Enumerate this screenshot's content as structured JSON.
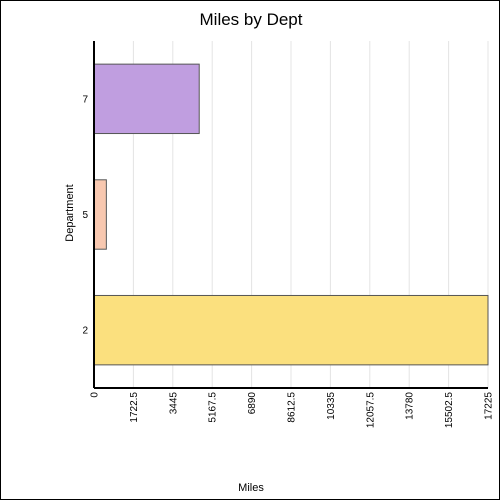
{
  "chart_data": {
    "type": "bar",
    "orientation": "horizontal",
    "title": "Miles by Dept",
    "xlabel": "Miles",
    "ylabel": "Department",
    "categories": [
      "2",
      "5",
      "7"
    ],
    "values": [
      17225,
      540,
      4600
    ],
    "xlim": [
      0,
      17225
    ],
    "x_ticks": [
      "0",
      "1722.5",
      "3445",
      "5167.5",
      "6890",
      "8612.5",
      "10335",
      "12057.5",
      "13780",
      "15502.5",
      "17225"
    ],
    "x_tick_values": [
      0,
      1722.5,
      3445,
      5167.5,
      6890,
      8612.5,
      10335,
      12057.5,
      13780,
      15502.5,
      17225
    ],
    "bar_colors": [
      "#fbe07e",
      "#f8c8b0",
      "#c09ee0"
    ],
    "grid": true,
    "legend": "none"
  }
}
